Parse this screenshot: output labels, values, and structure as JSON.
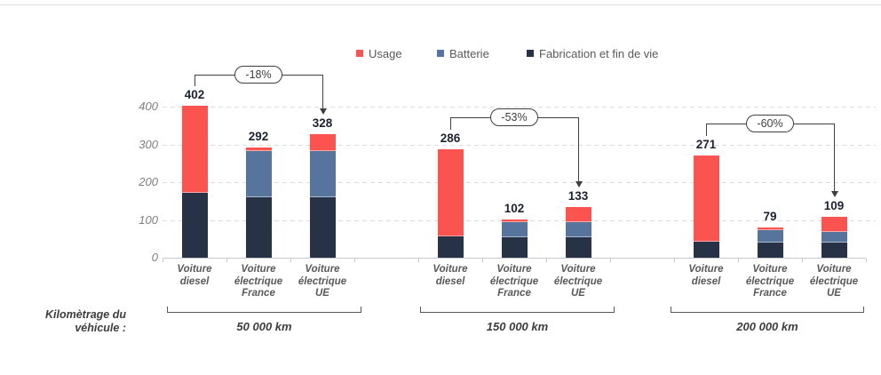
{
  "page": {
    "background": "#ffffff"
  },
  "legend": {
    "items": [
      {
        "label": "Usage",
        "color": "#fb5350"
      },
      {
        "label": "Batterie",
        "color": "#56749c"
      },
      {
        "label": "Fabrication et fin de vie",
        "color": "#273246"
      }
    ]
  },
  "axis_caption": {
    "line1": "Kilomètrage du",
    "line2": "véhicule :"
  },
  "chart_data": {
    "type": "bar",
    "stacked": true,
    "title": "",
    "xlabel": "Kilomètrage du véhicule",
    "ylabel": "",
    "ylim": [
      0,
      400
    ],
    "yticks": [
      0,
      100,
      200,
      300,
      400
    ],
    "grid": "horizontal-dashed",
    "legend_position": "top",
    "series_names": [
      "Usage",
      "Batterie",
      "Fabrication et fin de vie"
    ],
    "groups": [
      {
        "label": "50 000 km",
        "annotation": "-18%",
        "bars": [
          {
            "category": [
              "Voiture",
              "diesel"
            ],
            "total": 402,
            "fabrication": 172,
            "batterie": 0,
            "usage": 230
          },
          {
            "category": [
              "Voiture",
              "électrique",
              "France"
            ],
            "total": 292,
            "fabrication": 160,
            "batterie": 123,
            "usage": 9
          },
          {
            "category": [
              "Voiture",
              "électrique",
              "UE"
            ],
            "total": 328,
            "fabrication": 160,
            "batterie": 123,
            "usage": 45
          }
        ]
      },
      {
        "label": "150 000 km",
        "annotation": "-53%",
        "bars": [
          {
            "category": [
              "Voiture",
              "diesel"
            ],
            "total": 286,
            "fabrication": 57,
            "batterie": 0,
            "usage": 229
          },
          {
            "category": [
              "Voiture",
              "électrique",
              "France"
            ],
            "total": 102,
            "fabrication": 53,
            "batterie": 42,
            "usage": 7
          },
          {
            "category": [
              "Voiture",
              "électrique",
              "UE"
            ],
            "total": 133,
            "fabrication": 53,
            "batterie": 41,
            "usage": 39
          }
        ]
      },
      {
        "label": "200 000 km",
        "annotation": "-60%",
        "bars": [
          {
            "category": [
              "Voiture",
              "diesel"
            ],
            "total": 271,
            "fabrication": 42,
            "batterie": 0,
            "usage": 229
          },
          {
            "category": [
              "Voiture",
              "électrique",
              "France"
            ],
            "total": 79,
            "fabrication": 40,
            "batterie": 32,
            "usage": 7
          },
          {
            "category": [
              "Voiture",
              "électrique",
              "UE"
            ],
            "total": 109,
            "fabrication": 40,
            "batterie": 29,
            "usage": 40
          }
        ]
      }
    ]
  }
}
